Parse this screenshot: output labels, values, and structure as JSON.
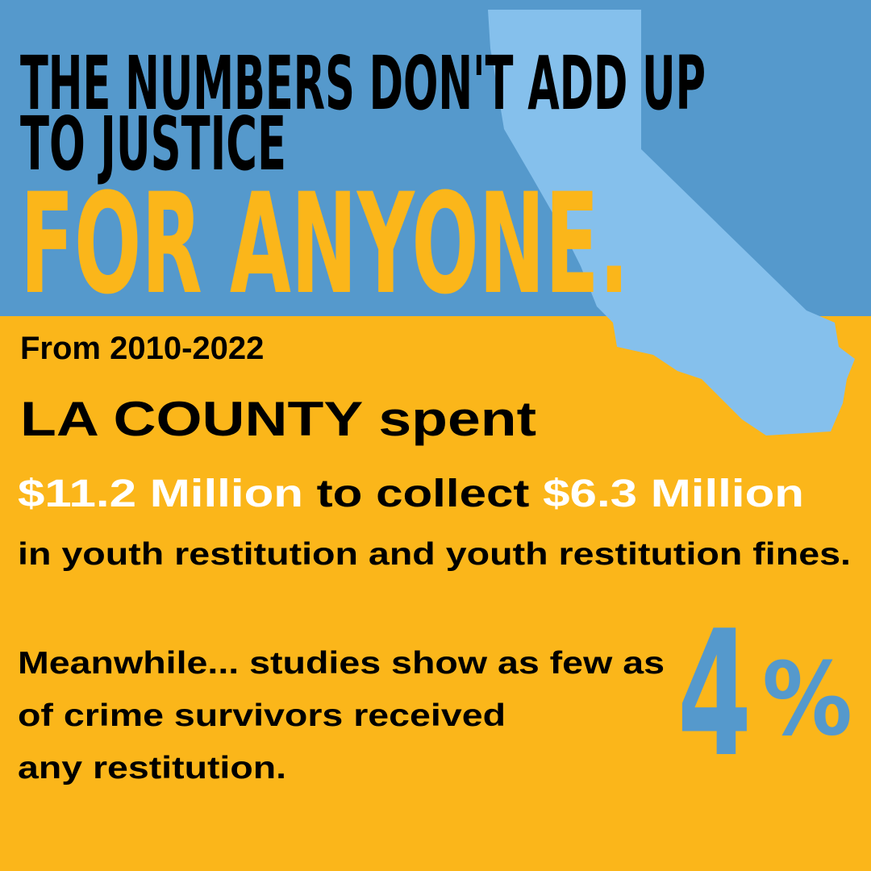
{
  "headline": {
    "lines": [
      "THE NUMBERS DON'T ADD UP",
      "TO JUSTICE",
      "FOR ANYONE."
    ]
  },
  "stats": {
    "period": "From 2010-2022",
    "subject": "LA COUNTY spent",
    "spent": "$11.2 Million",
    "connector": " to collect ",
    "collected": "$6.3 Million",
    "context": "in youth restitution and youth restitution fines."
  },
  "note": {
    "lines": [
      "Meanwhile... studies show as few as",
      "of crime survivors received",
      "any restitution."
    ],
    "percent": "4",
    "percent_sign": "%"
  }
}
